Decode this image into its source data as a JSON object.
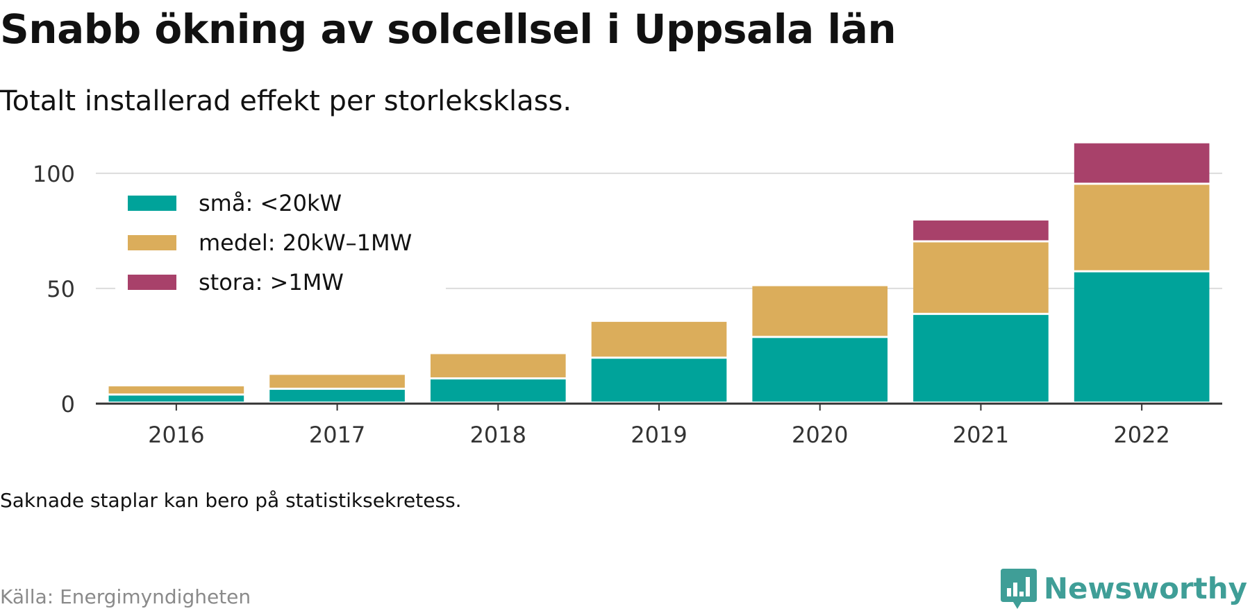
{
  "header": {
    "title": "Snabb ökning av solcellsel i Uppsala län",
    "subtitle": "Totalt installerad effekt per storleksklass."
  },
  "footer": {
    "note": "Saknade staplar kan bero på statistiksekretess.",
    "source": "Källa: Energimyndigheten",
    "brand": "Newsworthy"
  },
  "colors": {
    "small": "#00a39a",
    "medium": "#dbad5b",
    "large": "#a8416a",
    "brand": "#3f9e97"
  },
  "chart_data": {
    "type": "bar",
    "stacked": true,
    "title": "Snabb ökning av solcellsel i Uppsala län",
    "subtitle": "Totalt installerad effekt per storleksklass.",
    "categories": [
      "2016",
      "2017",
      "2018",
      "2019",
      "2020",
      "2021",
      "2022"
    ],
    "series": [
      {
        "name": "små: <20kW",
        "color": "#00a39a",
        "values": [
          3.5,
          6,
          10.5,
          19.5,
          28.5,
          38.5,
          57
        ]
      },
      {
        "name": "medel: 20kW–1MW",
        "color": "#dbad5b",
        "values": [
          4,
          6.5,
          11,
          16,
          22.5,
          31.5,
          38
        ]
      },
      {
        "name": "stora: >1MW",
        "color": "#a8416a",
        "values": [
          null,
          null,
          null,
          null,
          null,
          9.5,
          18
        ]
      }
    ],
    "yticks": [
      0,
      50,
      100
    ],
    "ylim": [
      0,
      115
    ],
    "xlabel": "",
    "ylabel": "",
    "grid": true,
    "legend": "top-left"
  }
}
